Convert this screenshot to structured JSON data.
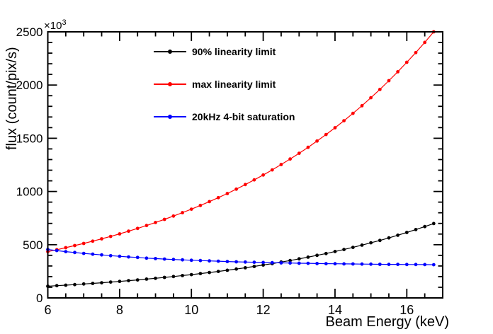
{
  "figure": {
    "background_color": "#ffffff",
    "frame_color": "#000000"
  },
  "chart_data": {
    "type": "line",
    "title": "",
    "xlabel": "Beam Energy (keV)",
    "ylabel": "flux (count/pix/s)",
    "y_exponent": {
      "text": "×10",
      "power": "3"
    },
    "xlim": [
      6,
      17
    ],
    "ylim": [
      0,
      2500
    ],
    "x_major_ticks": [
      6,
      8,
      10,
      12,
      14,
      16
    ],
    "x_minor_step": 0.5,
    "y_major_ticks": [
      0,
      500,
      1000,
      1500,
      2000,
      2500
    ],
    "y_minor_step": 100,
    "grid": false,
    "legend_position": "top-left-inside",
    "marker": "filled-circle",
    "x": [
      6.0,
      6.25,
      6.5,
      6.75,
      7.0,
      7.25,
      7.5,
      7.75,
      8.0,
      8.25,
      8.5,
      8.75,
      9.0,
      9.25,
      9.5,
      9.75,
      10.0,
      10.25,
      10.5,
      10.75,
      11.0,
      11.25,
      11.5,
      11.75,
      12.0,
      12.25,
      12.5,
      12.75,
      13.0,
      13.25,
      13.5,
      13.75,
      14.0,
      14.25,
      14.5,
      14.75,
      15.0,
      15.25,
      15.5,
      15.75,
      16.0,
      16.25,
      16.5,
      16.75
    ],
    "series": [
      {
        "name": "90% linearity limit",
        "color": "#000000",
        "values": [
          110,
          115,
          120,
          125,
          131,
          136,
          142,
          149,
          155,
          162,
          169,
          177,
          184,
          193,
          201,
          210,
          219,
          229,
          239,
          249,
          260,
          271,
          283,
          296,
          309,
          322,
          337,
          351,
          367,
          383,
          400,
          417,
          436,
          455,
          475,
          496,
          518,
          540,
          564,
          589,
          615,
          642,
          670,
          699
        ]
      },
      {
        "name": "max linearity limit",
        "color": "#ff0000",
        "values": [
          435,
          453,
          472,
          492,
          512,
          533,
          555,
          578,
          602,
          627,
          653,
          680,
          709,
          738,
          769,
          801,
          834,
          869,
          905,
          942,
          981,
          1022,
          1065,
          1109,
          1155,
          1203,
          1253,
          1305,
          1359,
          1415,
          1474,
          1535,
          1599,
          1665,
          1734,
          1806,
          1881,
          1959,
          2041,
          2125,
          2214,
          2305,
          2401,
          2500
        ]
      },
      {
        "name": "20kHz 4-bit saturation",
        "color": "#0000ff",
        "values": [
          455,
          445,
          435,
          427,
          418,
          411,
          404,
          397,
          391,
          385,
          380,
          374,
          370,
          365,
          361,
          358,
          354,
          351,
          348,
          345,
          342,
          339,
          337,
          335,
          333,
          331,
          329,
          328,
          326,
          325,
          323,
          322,
          321,
          320,
          319,
          318,
          317,
          316,
          315,
          315,
          314,
          314,
          313,
          312
        ]
      }
    ]
  }
}
